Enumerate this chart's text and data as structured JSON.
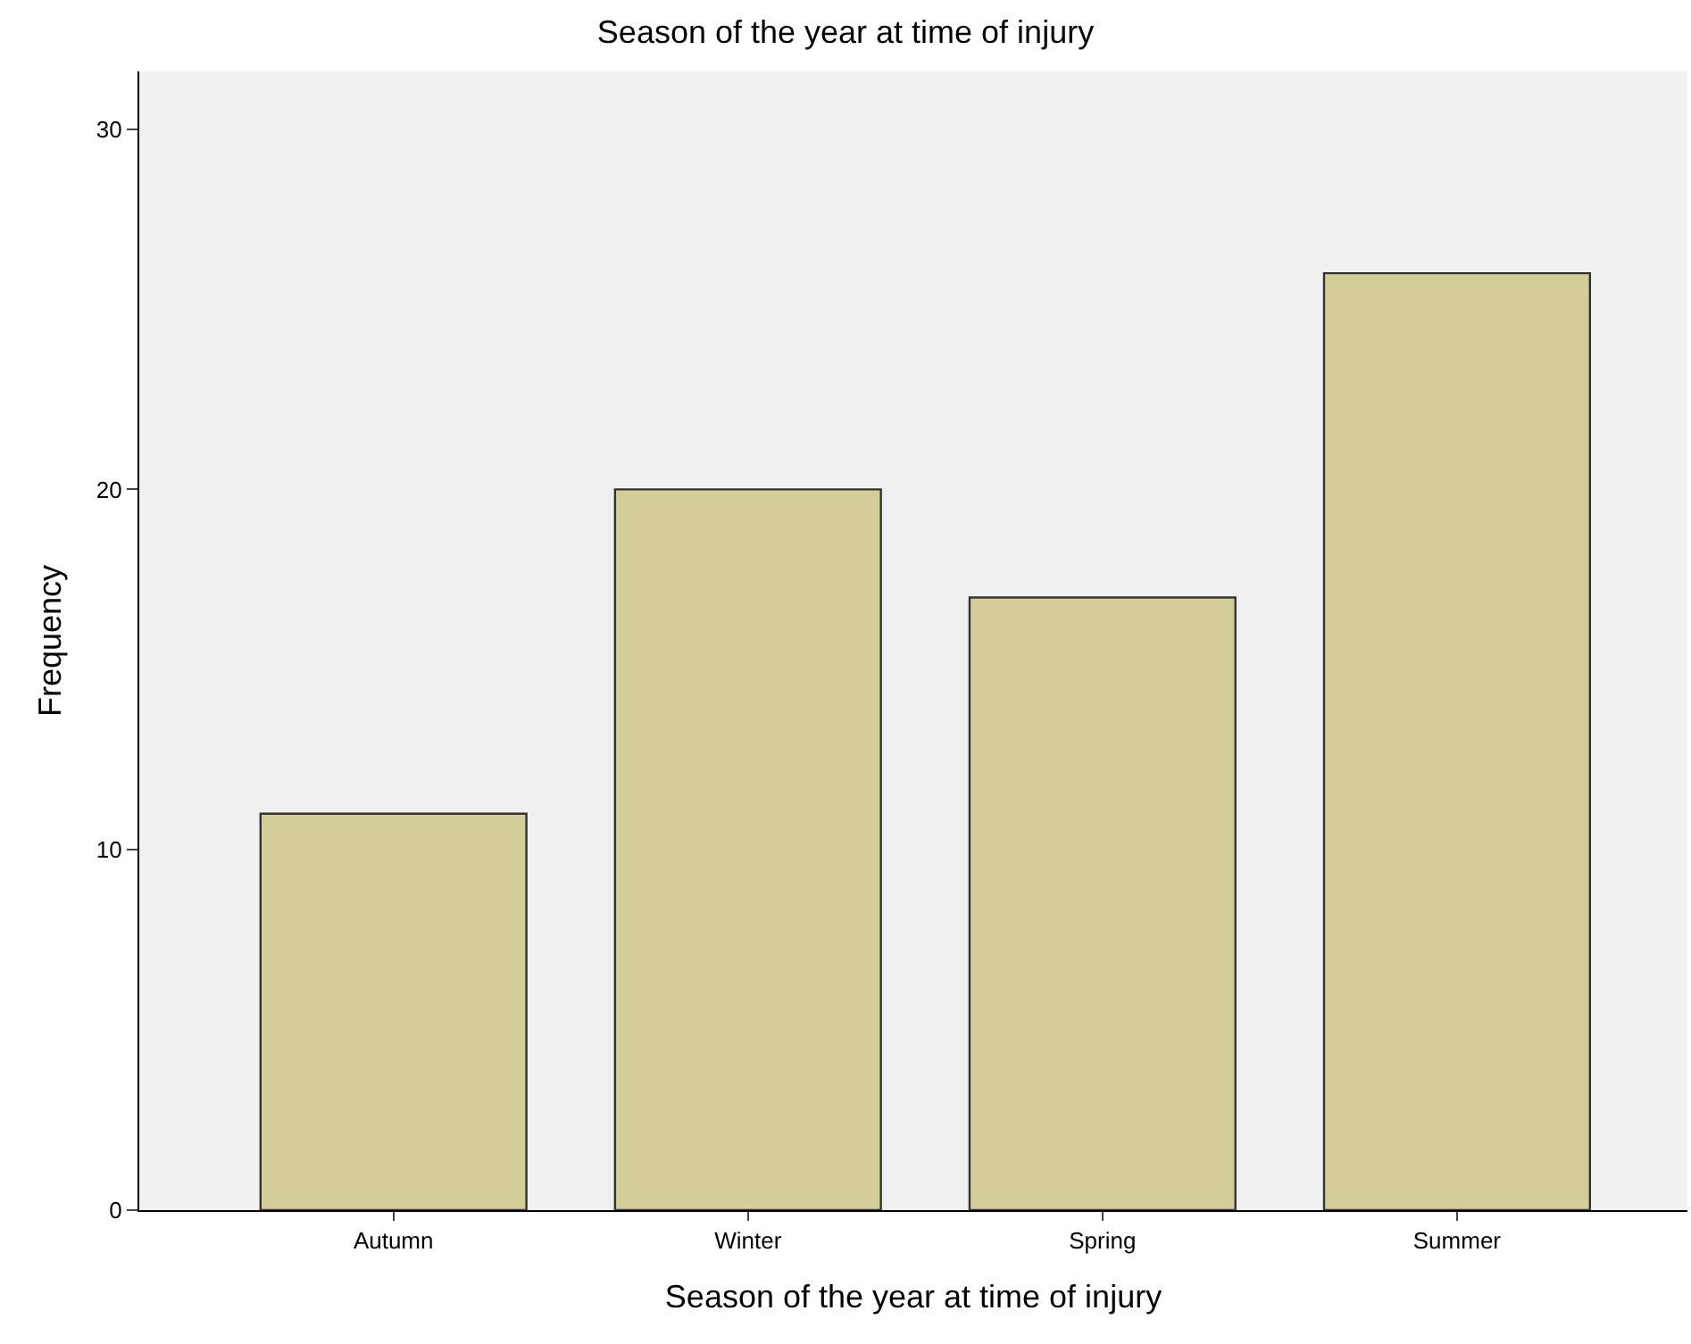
{
  "chart_data": {
    "type": "bar",
    "title": "Season of the year at time of injury",
    "xlabel": "Season of the year at time of injury",
    "ylabel": "Frequency",
    "categories": [
      "Autumn",
      "Winter",
      "Spring",
      "Summer"
    ],
    "values": [
      11,
      20,
      17,
      26
    ],
    "color": "#d3ce97",
    "ylim": [
      0,
      31.6
    ],
    "yticks": [
      0,
      10,
      20,
      30
    ],
    "grid": false,
    "legend": false
  }
}
